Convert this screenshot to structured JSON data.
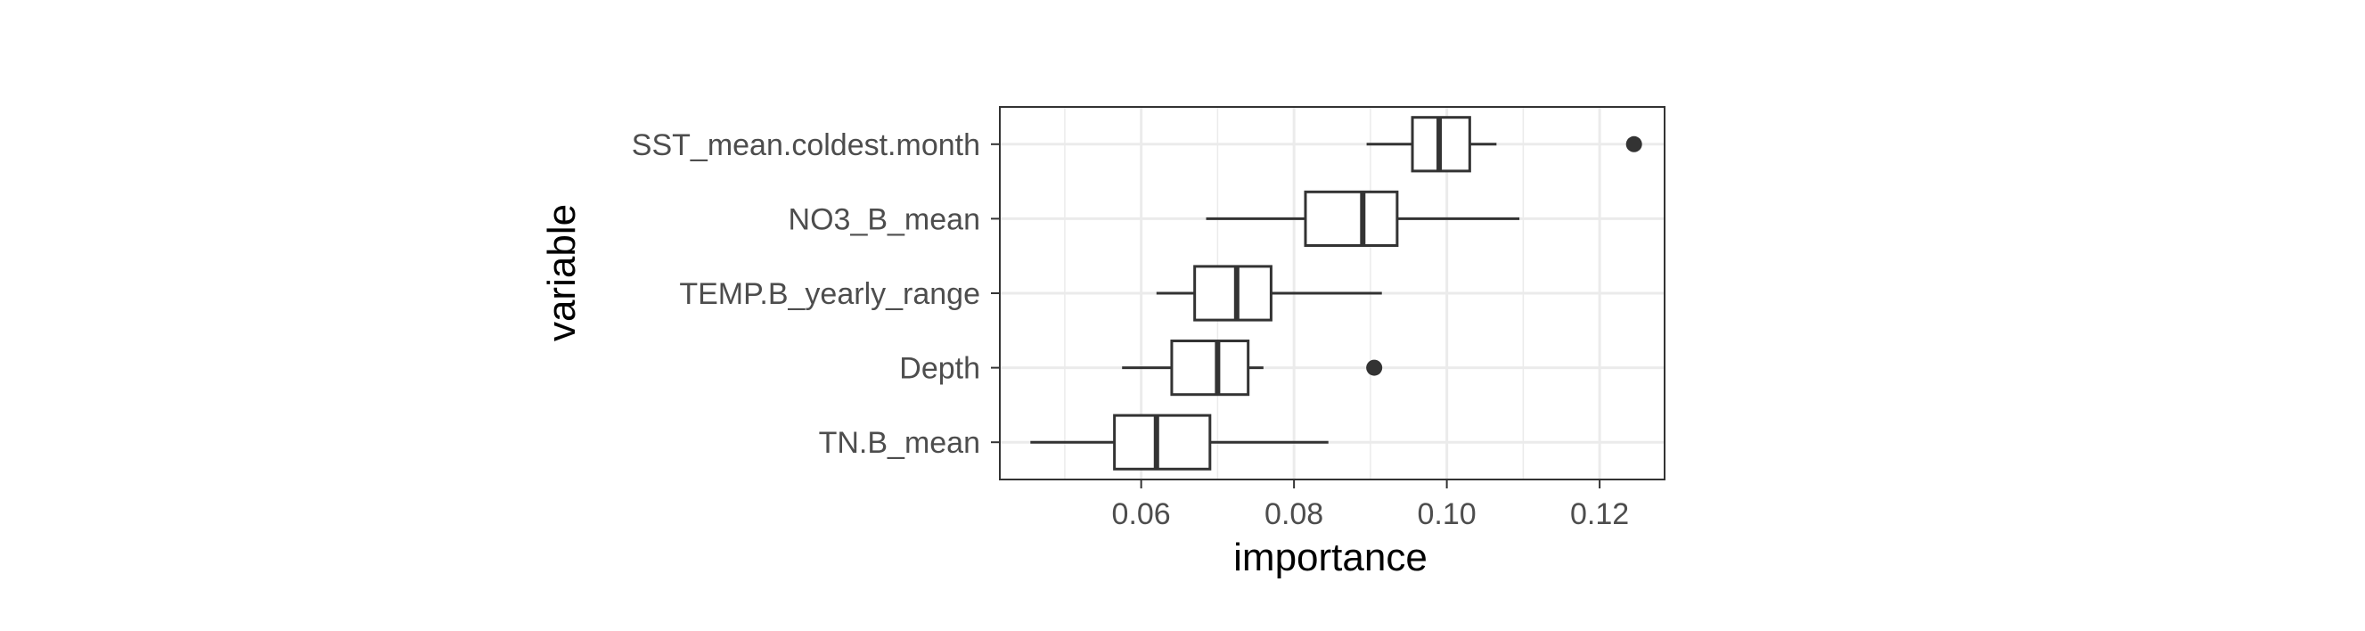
{
  "chart_data": {
    "type": "boxplot",
    "orientation": "horizontal",
    "xlabel": "importance",
    "ylabel": "variable",
    "xlim": [
      0.0415,
      0.1285
    ],
    "x_ticks": [
      0.06,
      0.08,
      0.1,
      0.12
    ],
    "x_tick_labels": [
      "0.06",
      "0.08",
      "0.10",
      "0.12"
    ],
    "categories": [
      "SST_mean.coldest.month",
      "NO3_B_mean",
      "TEMP.B_yearly_range",
      "Depth",
      "TN.B_mean"
    ],
    "boxes": [
      {
        "category": "SST_mean.coldest.month",
        "whisker_low": 0.0895,
        "q1": 0.0955,
        "median": 0.099,
        "q3": 0.103,
        "whisker_high": 0.1065,
        "outliers": [
          0.1245
        ]
      },
      {
        "category": "NO3_B_mean",
        "whisker_low": 0.0685,
        "q1": 0.0815,
        "median": 0.089,
        "q3": 0.0935,
        "whisker_high": 0.1095,
        "outliers": []
      },
      {
        "category": "TEMP.B_yearly_range",
        "whisker_low": 0.062,
        "q1": 0.067,
        "median": 0.0725,
        "q3": 0.077,
        "whisker_high": 0.0915,
        "outliers": []
      },
      {
        "category": "Depth",
        "whisker_low": 0.0575,
        "q1": 0.064,
        "median": 0.07,
        "q3": 0.074,
        "whisker_high": 0.076,
        "outliers": [
          0.0905
        ]
      },
      {
        "category": "TN.B_mean",
        "whisker_low": 0.0455,
        "q1": 0.0565,
        "median": 0.062,
        "q3": 0.069,
        "whisker_high": 0.0845,
        "outliers": []
      }
    ],
    "grid": true,
    "legend": "none",
    "colors": {
      "box_stroke": "#333333",
      "box_fill": "#ffffff",
      "grid": "#ebebeb",
      "panel_border": "#333333",
      "outlier": "#333333"
    }
  }
}
